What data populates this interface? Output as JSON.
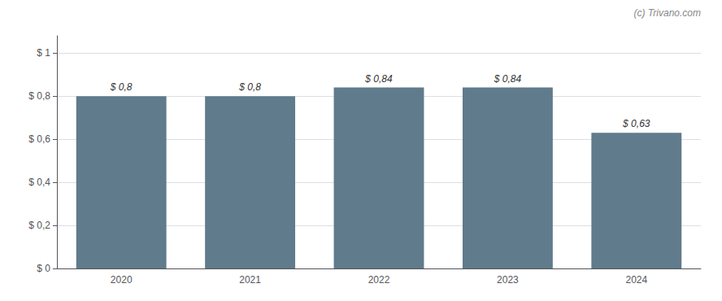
{
  "chart_data": {
    "type": "bar",
    "categories": [
      "2020",
      "2021",
      "2022",
      "2023",
      "2024"
    ],
    "values": [
      0.8,
      0.8,
      0.84,
      0.84,
      0.63
    ],
    "value_labels": [
      "$ 0,8",
      "$ 0,8",
      "$ 0,84",
      "$ 0,84",
      "$ 0,63"
    ],
    "data_labels": true,
    "color": "#607b8b",
    "ylim": [
      0,
      1.08
    ],
    "yticks": [
      {
        "value": 0,
        "label": "$ 0"
      },
      {
        "value": 0.2,
        "label": "$ 0,2"
      },
      {
        "value": 0.4,
        "label": "$ 0,4"
      },
      {
        "value": 0.6,
        "label": "$ 0,6"
      },
      {
        "value": 0.8,
        "label": "$ 0,8"
      },
      {
        "value": 1.0,
        "label": "$ 1"
      }
    ],
    "grid": true,
    "annotations": [
      "(c) Trivano.com"
    ]
  }
}
